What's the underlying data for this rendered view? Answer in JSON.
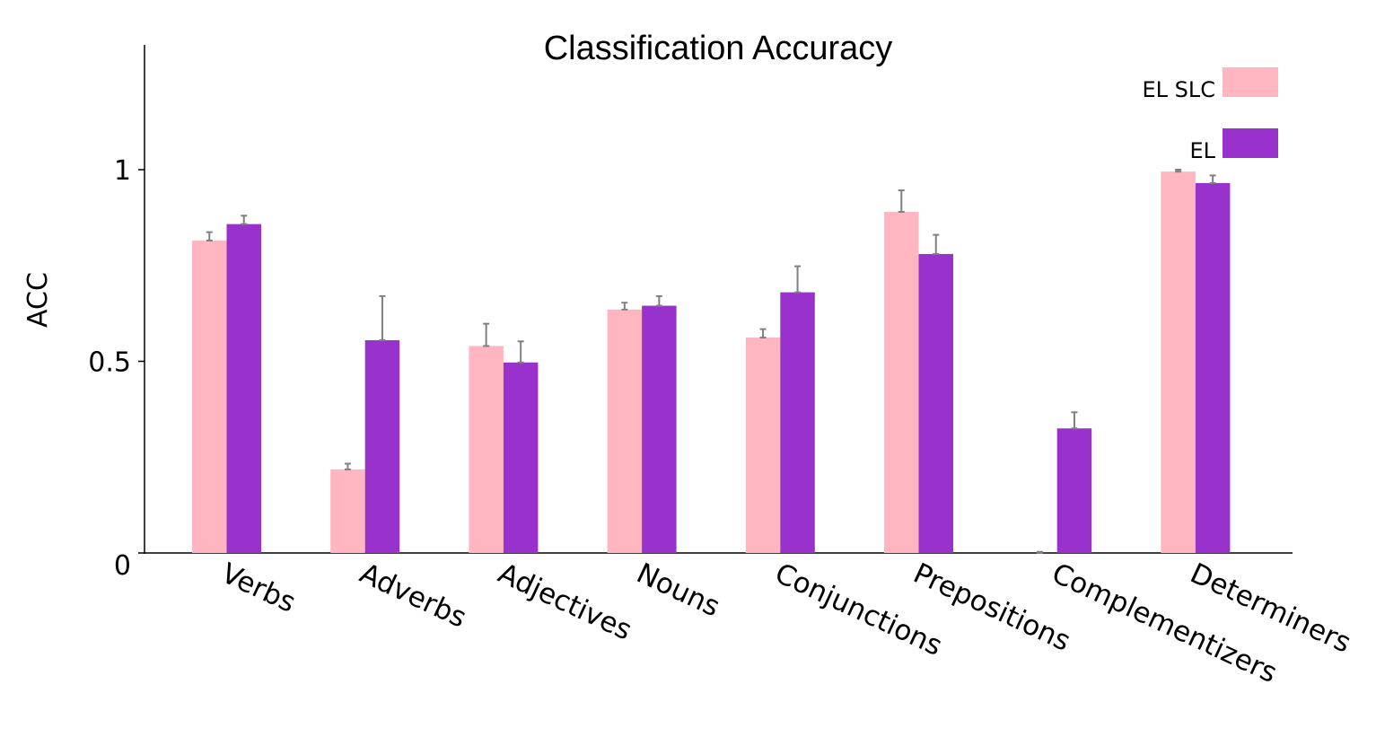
{
  "chart_data": {
    "type": "bar",
    "title": "Classification Accuracy",
    "xlabel": "",
    "ylabel": "ACC",
    "ylim": [
      0,
      1.32
    ],
    "yticks": [
      {
        "value": 0,
        "label": "0"
      },
      {
        "value": 0.5,
        "label": "0.5"
      },
      {
        "value": 1,
        "label": "1"
      }
    ],
    "categories": [
      "Verbs",
      "Adverbs",
      "Adjectives",
      "Nouns",
      "Conjunctions",
      "Prepositions",
      "Complementizers",
      "Determiners"
    ],
    "series": [
      {
        "name": "EL SLC",
        "color": "#FFB6C1",
        "values": [
          0.815,
          0.218,
          0.54,
          0.635,
          0.562,
          0.89,
          0.0,
          0.995
        ],
        "errors": [
          0.022,
          0.015,
          0.058,
          0.018,
          0.022,
          0.056,
          0.003,
          0.005
        ]
      },
      {
        "name": "EL",
        "color": "#9932CC",
        "values": [
          0.858,
          0.555,
          0.497,
          0.645,
          0.68,
          0.78,
          0.325,
          0.965
        ],
        "errors": [
          0.022,
          0.115,
          0.055,
          0.025,
          0.068,
          0.05,
          0.042,
          0.02
        ]
      }
    ],
    "error_bar_color": "#808080",
    "legend_position": "top-right",
    "grid": false
  }
}
